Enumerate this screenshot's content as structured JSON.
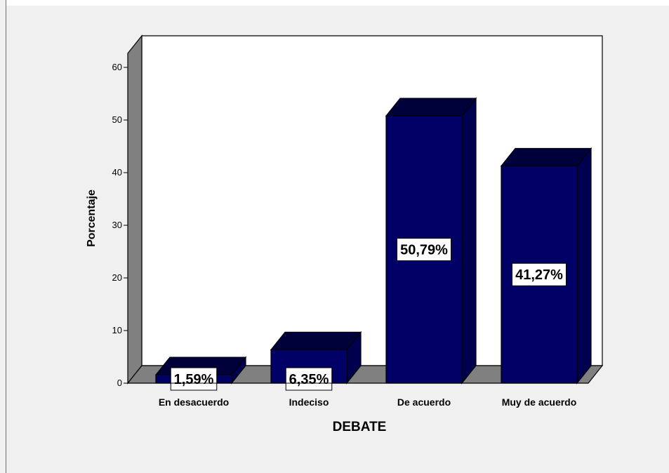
{
  "chart_data": {
    "type": "bar",
    "categories": [
      "En desacuerdo",
      "Indeciso",
      "De acuerdo",
      "Muy de acuerdo"
    ],
    "values": [
      1.59,
      6.35,
      50.79,
      41.27
    ],
    "data_labels": [
      "1,59%",
      "6,35%",
      "50,79%",
      "41,27%"
    ],
    "xlabel": "DEBATE",
    "ylabel": "Porcentaje",
    "ylim": [
      0,
      60
    ],
    "yticks": [
      "0",
      "10",
      "20",
      "30",
      "40",
      "50",
      "60"
    ],
    "grid": false,
    "style": "3d",
    "colors": {
      "bar_front": "#000066",
      "bar_top": "#00003a",
      "bar_side": "#000050",
      "floor": "#808080",
      "plot_background": "#ffffff",
      "frame_background": "#f0f0f0"
    }
  }
}
